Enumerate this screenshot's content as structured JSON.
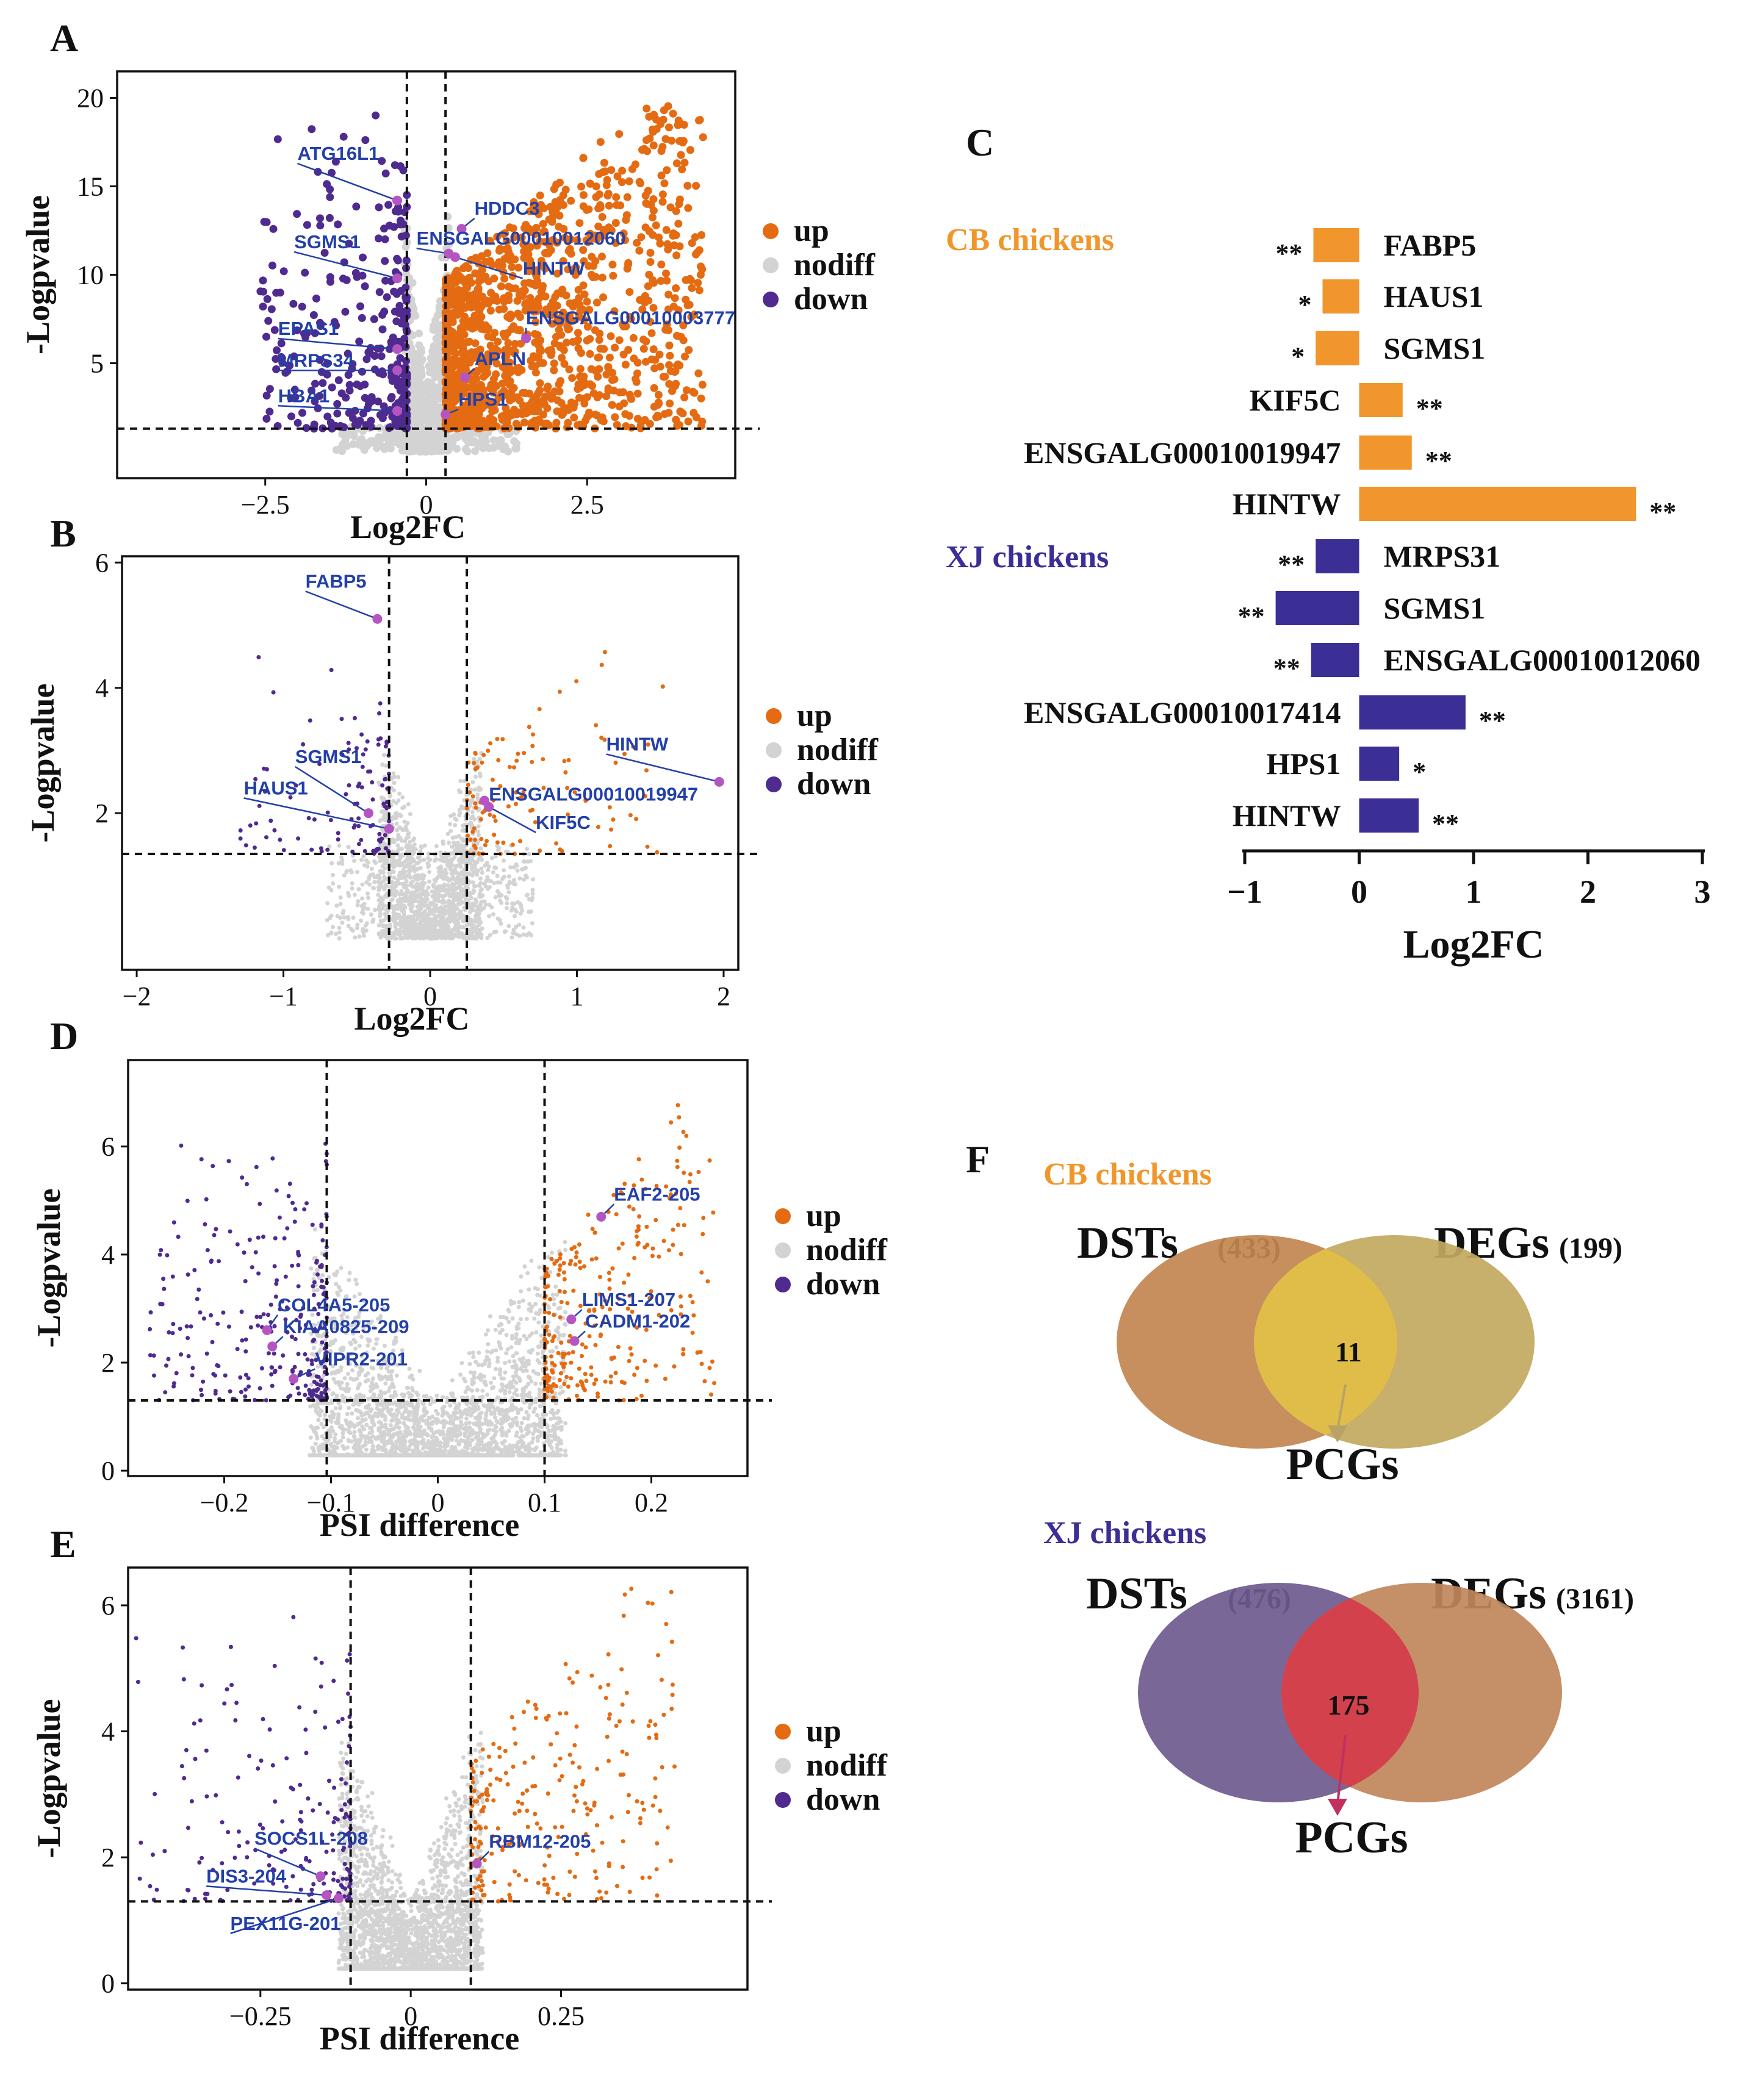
{
  "colors": {
    "up": "#e46b12",
    "nodiff": "#d3d3d3",
    "down": "#4f2a8f",
    "highlight": "#b455c2",
    "annot": "#2340a8",
    "cb": "#f0962c",
    "xj": "#3b2f96"
  },
  "legend": {
    "up": "up",
    "nodiff": "nodiff",
    "down": "down"
  },
  "chart_data": [
    {
      "panel": "A",
      "type": "scatter",
      "title": "",
      "xlabel": "Log2FC",
      "ylabel": "-Logpvalue",
      "xlim": [
        -4.8,
        4.8
      ],
      "ylim": [
        -1.5,
        21.5
      ],
      "xticks": [
        -2.5,
        0,
        2.5
      ],
      "yticks": [
        5,
        10,
        15,
        20
      ],
      "xtick_labels": [
        "−2.5",
        "0",
        "2.5"
      ],
      "ytick_labels": [
        "5",
        "10",
        "15",
        "20"
      ],
      "vlines": [
        -0.3,
        0.3
      ],
      "hline": 1.3,
      "spread": {
        "x_up": [
          0.3,
          4.3
        ],
        "x_down": [
          -2.6,
          -0.3
        ],
        "x_nodiff": [
          -0.35,
          0.35
        ],
        "y_max": 20,
        "n_up": 1300,
        "n_down": 300,
        "n_nodiff": 700
      },
      "labels": [
        {
          "text": "ATG16L1",
          "x": -0.45,
          "y": 14.2,
          "tx": -2.0,
          "ty": 16.5
        },
        {
          "text": "SGMS1",
          "x": -0.45,
          "y": 9.8,
          "tx": -2.05,
          "ty": 11.5
        },
        {
          "text": "EPAS1",
          "x": -0.45,
          "y": 5.8,
          "tx": -2.3,
          "ty": 6.6
        },
        {
          "text": "MRPS34",
          "x": -0.45,
          "y": 4.6,
          "tx": -2.3,
          "ty": 4.8
        },
        {
          "text": "HBA1",
          "x": -0.45,
          "y": 2.3,
          "tx": -2.3,
          "ty": 2.8
        },
        {
          "text": "HDDC3",
          "x": 0.55,
          "y": 12.6,
          "tx": 0.75,
          "ty": 13.4
        },
        {
          "text": "ENSGALG00010012060",
          "x": 0.35,
          "y": 11.2,
          "tx": -0.15,
          "ty": 11.7
        },
        {
          "text": "HINTW",
          "x": 0.45,
          "y": 11.0,
          "tx": 1.5,
          "ty": 10.0
        },
        {
          "text": "ENSGALG00010003777",
          "x": 1.55,
          "y": 6.4,
          "tx": 1.55,
          "ty": 7.2
        },
        {
          "text": "APLN",
          "x": 0.6,
          "y": 4.2,
          "tx": 0.75,
          "ty": 4.9
        },
        {
          "text": "HPS1",
          "x": 0.3,
          "y": 2.1,
          "tx": 0.5,
          "ty": 2.6
        }
      ]
    },
    {
      "panel": "B",
      "type": "scatter",
      "title": "",
      "xlabel": "Log2FC",
      "ylabel": "-Logpvalue",
      "xlim": [
        -2.1,
        2.1
      ],
      "ylim": [
        -0.5,
        6.1
      ],
      "xticks": [
        -2,
        -1,
        0,
        1,
        2
      ],
      "yticks": [
        2,
        4,
        6
      ],
      "xtick_labels": [
        "−2",
        "−1",
        "0",
        "1",
        "2"
      ],
      "ytick_labels": [
        "2",
        "4",
        "6"
      ],
      "vlines": [
        -0.28,
        0.25
      ],
      "hline": 1.35,
      "spread": {
        "x_up": [
          0.25,
          1.6
        ],
        "x_down": [
          -1.3,
          -0.28
        ],
        "x_nodiff": [
          -0.35,
          0.35
        ],
        "y_max": 4.8,
        "n_up": 110,
        "n_down": 110,
        "n_nodiff": 1800
      },
      "labels": [
        {
          "text": "FABP5",
          "x": -0.36,
          "y": 5.1,
          "tx": -0.85,
          "ty": 5.6
        },
        {
          "text": "SGMS1",
          "x": -0.42,
          "y": 2.0,
          "tx": -0.92,
          "ty": 2.8
        },
        {
          "text": "HAUS1",
          "x": -0.28,
          "y": 1.75,
          "tx": -1.27,
          "ty": 2.3
        },
        {
          "text": "HINTW",
          "x": 1.97,
          "y": 2.5,
          "tx": 1.2,
          "ty": 3.0
        },
        {
          "text": "ENSGALG00010019947",
          "x": 0.37,
          "y": 2.2,
          "tx": 0.4,
          "ty": 2.2
        },
        {
          "text": "KIF5C",
          "x": 0.4,
          "y": 2.1,
          "tx": 0.72,
          "ty": 1.75
        }
      ]
    },
    {
      "panel": "D",
      "type": "scatter",
      "title": "",
      "xlabel": "PSI difference",
      "ylabel": "-Logpvalue",
      "xlim": [
        -0.29,
        0.29
      ],
      "ylim": [
        -0.1,
        7.6
      ],
      "xticks": [
        -0.2,
        -0.1,
        0,
        0.1,
        0.2
      ],
      "yticks": [
        0,
        2,
        4,
        6
      ],
      "xtick_labels": [
        "−0.2",
        "−0.1",
        "0",
        "0.1",
        "0.2"
      ],
      "ytick_labels": [
        "0",
        "2",
        "4",
        "6"
      ],
      "vlines": [
        -0.104,
        0.1
      ],
      "hline": 1.3,
      "spread": {
        "x_up": [
          0.1,
          0.26
        ],
        "x_down": [
          -0.27,
          -0.104
        ],
        "x_nodiff": [
          -0.12,
          0.12
        ],
        "y_max": 6.8,
        "n_up": 280,
        "n_down": 280,
        "n_nodiff": 2400
      },
      "labels": [
        {
          "text": "EAF2-205",
          "x": 0.153,
          "y": 4.7,
          "tx": 0.165,
          "ty": 5.0
        },
        {
          "text": "LIMS1-207",
          "x": 0.125,
          "y": 2.8,
          "tx": 0.135,
          "ty": 3.05
        },
        {
          "text": "CADM1-202",
          "x": 0.128,
          "y": 2.4,
          "tx": 0.138,
          "ty": 2.65
        },
        {
          "text": "COL4A5-205",
          "x": -0.16,
          "y": 2.6,
          "tx": -0.15,
          "ty": 2.95
        },
        {
          "text": "KIAA0825-209",
          "x": -0.155,
          "y": 2.3,
          "tx": -0.145,
          "ty": 2.55
        },
        {
          "text": "VIPR2-201",
          "x": -0.135,
          "y": 1.7,
          "tx": -0.115,
          "ty": 1.95
        }
      ]
    },
    {
      "panel": "E",
      "type": "scatter",
      "title": "",
      "xlabel": "PSI difference",
      "ylabel": "-Logpvalue",
      "xlim": [
        -0.47,
        0.56
      ],
      "ylim": [
        -0.1,
        6.6
      ],
      "xticks": [
        -0.25,
        0,
        0.25
      ],
      "yticks": [
        0,
        2,
        4,
        6
      ],
      "xtick_labels": [
        "−0.25",
        "0",
        "0.25"
      ],
      "ytick_labels": [
        "0",
        "2",
        "4",
        "6"
      ],
      "vlines": [
        -0.1,
        0.1
      ],
      "hline": 1.3,
      "spread": {
        "x_up": [
          0.1,
          0.44
        ],
        "x_down": [
          -0.46,
          -0.1
        ],
        "x_nodiff": [
          -0.12,
          0.12
        ],
        "y_max": 6.3,
        "n_up": 250,
        "n_down": 180,
        "n_nodiff": 2400
      },
      "labels": [
        {
          "text": "SOCS1L-208",
          "x": -0.15,
          "y": 1.7,
          "tx": -0.26,
          "ty": 2.2
        },
        {
          "text": "DIS3-204",
          "x": -0.14,
          "y": 1.4,
          "tx": -0.34,
          "ty": 1.6
        },
        {
          "text": "PEX11G-201",
          "x": -0.12,
          "y": 1.35,
          "tx": -0.3,
          "ty": 0.85
        },
        {
          "text": "RBM12-205",
          "x": 0.11,
          "y": 1.9,
          "tx": 0.13,
          "ty": 2.15
        }
      ]
    },
    {
      "panel": "C",
      "type": "bar",
      "title": "",
      "xlabel": "Log2FC",
      "xlim": [
        -1,
        3
      ],
      "xticks": [
        -1,
        0,
        1,
        2,
        3
      ],
      "xtick_labels": [
        "−1",
        "0",
        "1",
        "2",
        "3"
      ],
      "groups": [
        {
          "name": "CB chickens",
          "color": "#f0962c",
          "bars": [
            {
              "gene": "FABP5",
              "value": -0.4,
              "sig": "**"
            },
            {
              "gene": "HAUS1",
              "value": -0.32,
              "sig": "*"
            },
            {
              "gene": "SGMS1",
              "value": -0.38,
              "sig": "*"
            },
            {
              "gene": "KIF5C",
              "value": 0.38,
              "sig": "**"
            },
            {
              "gene": "ENSGALG00010019947",
              "value": 0.46,
              "sig": "**"
            },
            {
              "gene": "HINTW",
              "value": 2.42,
              "sig": "**"
            }
          ]
        },
        {
          "name": "XJ chickens",
          "color": "#3b2f96",
          "bars": [
            {
              "gene": "MRPS31",
              "value": -0.38,
              "sig": "**"
            },
            {
              "gene": "SGMS1",
              "value": -0.73,
              "sig": "**"
            },
            {
              "gene": "ENSGALG00010012060",
              "value": -0.42,
              "sig": "**"
            },
            {
              "gene": "ENSGALG00010017414",
              "value": 0.93,
              "sig": "**"
            },
            {
              "gene": "HPS1",
              "value": 0.35,
              "sig": "*"
            },
            {
              "gene": "HINTW",
              "value": 0.52,
              "sig": "**"
            }
          ]
        }
      ]
    },
    {
      "panel": "F",
      "type": "venn",
      "venns": [
        {
          "title": "CB chickens",
          "title_color": "#f0962c",
          "left_label": "DSTs",
          "left_n": "(433)",
          "right_label": "DEGs",
          "right_n": "(199)",
          "overlap": "11",
          "target": "PCGs"
        },
        {
          "title": "XJ chickens",
          "title_color": "#3b2f96",
          "left_label": "DSTs",
          "left_n": "(476)",
          "right_label": "DEGs",
          "right_n": "(3161)",
          "overlap": "175",
          "target": "PCGs"
        }
      ]
    }
  ]
}
